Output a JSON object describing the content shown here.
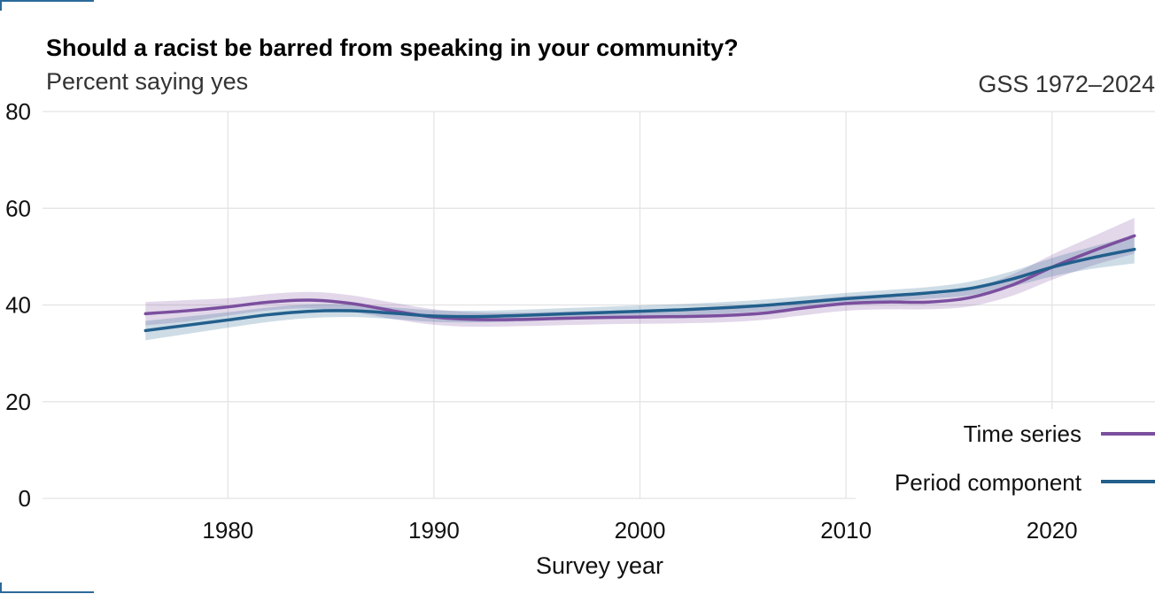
{
  "chart_data": {
    "type": "line",
    "title": "Should a racist be barred from speaking in your community?",
    "subtitle": "Percent saying yes",
    "source": "GSS 1972–2024",
    "xlabel": "Survey year",
    "ylabel": "",
    "xlim": [
      1971,
      2025
    ],
    "ylim": [
      0,
      80
    ],
    "x_ticks": [
      1980,
      1990,
      2000,
      2010,
      2020
    ],
    "y_ticks": [
      0,
      20,
      40,
      60,
      80
    ],
    "grid": true,
    "legend_position": "bottom-right",
    "series": [
      {
        "name": "Time series",
        "color": "#7b4f9e",
        "x": [
          1976,
          1978,
          1980,
          1982,
          1984,
          1986,
          1988,
          1990,
          1992,
          1994,
          1996,
          1998,
          2000,
          2002,
          2004,
          2006,
          2008,
          2010,
          2012,
          2014,
          2016,
          2018,
          2020,
          2022,
          2024
        ],
        "y": [
          38.2,
          38.8,
          39.6,
          40.6,
          41.0,
          40.3,
          38.8,
          37.5,
          37.0,
          37.0,
          37.2,
          37.4,
          37.5,
          37.6,
          37.8,
          38.3,
          39.4,
          40.3,
          40.6,
          40.6,
          41.5,
          44.0,
          47.8,
          51.2,
          54.3
        ],
        "lower": [
          35.8,
          36.6,
          37.8,
          38.9,
          39.3,
          38.6,
          37.1,
          35.9,
          35.5,
          35.6,
          35.8,
          36.0,
          36.1,
          36.2,
          36.4,
          36.9,
          37.9,
          38.8,
          39.1,
          39.1,
          39.7,
          41.8,
          45.2,
          48.2,
          50.6
        ],
        "upper": [
          40.6,
          41.0,
          41.4,
          42.3,
          42.7,
          42.0,
          40.5,
          39.1,
          38.5,
          38.4,
          38.6,
          38.8,
          38.9,
          39.0,
          39.2,
          39.7,
          40.9,
          41.8,
          42.1,
          42.1,
          43.3,
          46.2,
          50.4,
          54.2,
          58.0
        ]
      },
      {
        "name": "Period component",
        "color": "#225f8c",
        "x": [
          1976,
          1978,
          1980,
          1982,
          1984,
          1986,
          1988,
          1990,
          1992,
          1994,
          1996,
          1998,
          2000,
          2002,
          2004,
          2006,
          2008,
          2010,
          2012,
          2014,
          2016,
          2018,
          2020,
          2022,
          2024
        ],
        "y": [
          34.7,
          35.8,
          36.9,
          38.0,
          38.7,
          38.8,
          38.3,
          37.7,
          37.6,
          37.8,
          38.1,
          38.4,
          38.7,
          39.0,
          39.4,
          39.9,
          40.6,
          41.3,
          41.9,
          42.5,
          43.4,
          45.3,
          47.8,
          49.8,
          51.5
        ],
        "lower": [
          32.7,
          34.0,
          35.3,
          36.5,
          37.3,
          37.5,
          37.1,
          36.5,
          36.4,
          36.6,
          36.9,
          37.2,
          37.5,
          37.8,
          38.2,
          38.7,
          39.4,
          40.1,
          40.7,
          41.3,
          42.0,
          43.7,
          45.9,
          47.5,
          48.6
        ],
        "upper": [
          36.7,
          37.6,
          38.5,
          39.5,
          40.1,
          40.1,
          39.5,
          38.9,
          38.8,
          39.0,
          39.3,
          39.6,
          39.9,
          40.2,
          40.6,
          41.1,
          41.8,
          42.5,
          43.1,
          43.7,
          44.8,
          46.9,
          49.7,
          52.1,
          54.4
        ]
      }
    ]
  }
}
